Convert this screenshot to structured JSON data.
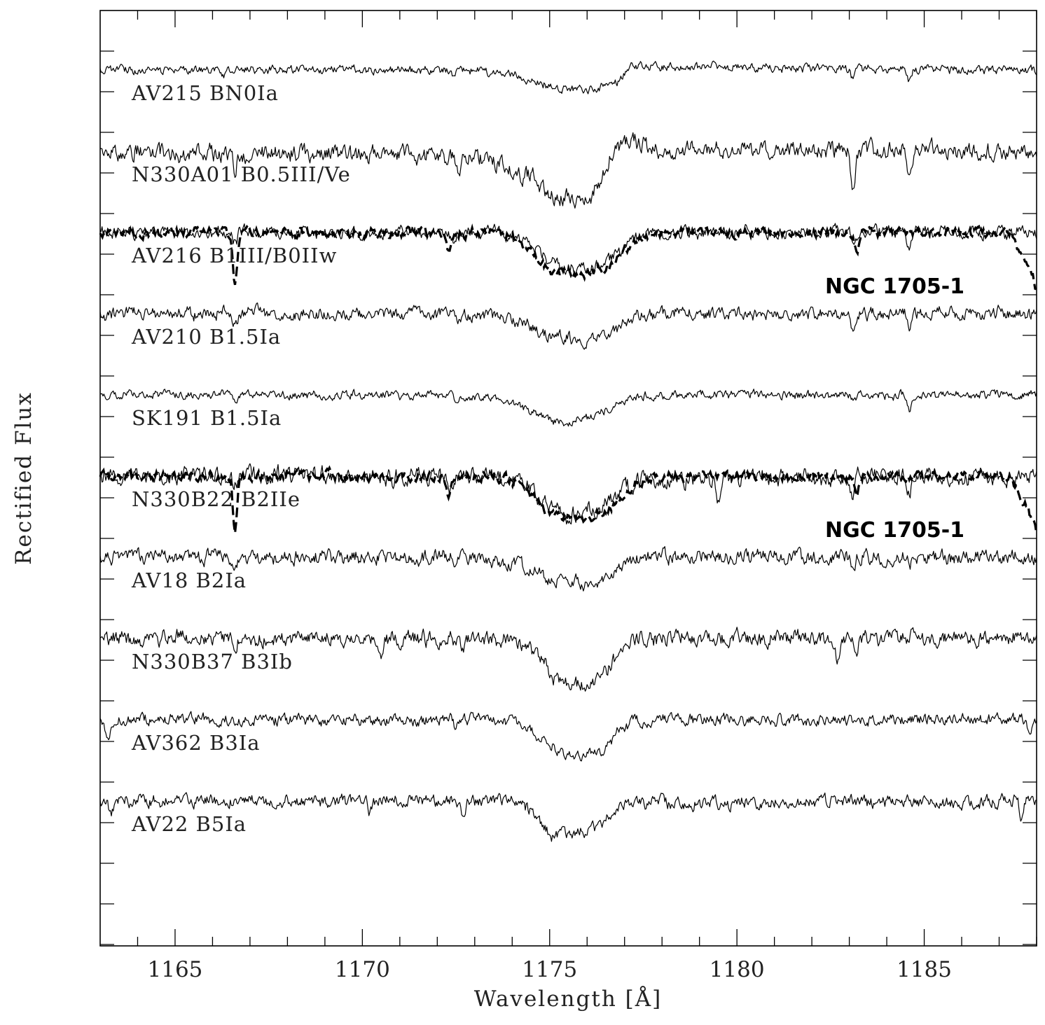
{
  "chart_data": {
    "type": "line",
    "title": "",
    "xlabel": "Wavelength [Å]",
    "ylabel": "Rectified Flux",
    "xlim": [
      1163,
      1188
    ],
    "x_ticks": [
      "1165",
      "1170",
      "1175",
      "1180",
      "1185"
    ],
    "grid": false,
    "series": [
      {
        "name": "AV215 BN0Ia",
        "offset": 0,
        "profile": [
          [
            1163,
            0
          ],
          [
            1172.5,
            0
          ],
          [
            1173.8,
            -0.05
          ],
          [
            1174.5,
            -0.2
          ],
          [
            1175.2,
            -0.33
          ],
          [
            1176.2,
            -0.35
          ],
          [
            1176.8,
            -0.25
          ],
          [
            1177.2,
            0.08
          ],
          [
            1178,
            0.05
          ],
          [
            1188,
            0
          ]
        ],
        "narrow": [
          [
            1166.3,
            -0.1
          ],
          [
            1172.4,
            -0.1
          ],
          [
            1183.1,
            -0.2
          ],
          [
            1184.6,
            -0.22
          ]
        ]
      },
      {
        "name": "N330A01 B0.5III/Ve",
        "offset": 1,
        "profile": [
          [
            1163,
            0
          ],
          [
            1170,
            -0.05
          ],
          [
            1172,
            -0.1
          ],
          [
            1173.5,
            -0.18
          ],
          [
            1174.5,
            -0.45
          ],
          [
            1175,
            -0.8
          ],
          [
            1175.5,
            -0.85
          ],
          [
            1175.9,
            -1.0
          ],
          [
            1176.3,
            -0.6
          ],
          [
            1176.6,
            -0.1
          ],
          [
            1177.2,
            0.2
          ],
          [
            1178,
            0.05
          ],
          [
            1188,
            0
          ]
        ],
        "narrow": [
          [
            1166.6,
            -0.3
          ],
          [
            1168.6,
            -0.2
          ],
          [
            1172.6,
            -0.4
          ],
          [
            1183.1,
            -0.65
          ],
          [
            1184.6,
            -0.6
          ]
        ]
      },
      {
        "name": "AV216 B1III/B0IIw",
        "offset": 2,
        "profile": [
          [
            1163,
            0
          ],
          [
            1173.5,
            0
          ],
          [
            1174.4,
            -0.15
          ],
          [
            1175,
            -0.55
          ],
          [
            1175.6,
            -0.65
          ],
          [
            1176.2,
            -0.62
          ],
          [
            1176.8,
            -0.35
          ],
          [
            1177.5,
            -0.05
          ],
          [
            1178,
            0
          ],
          [
            1188,
            0
          ]
        ],
        "narrow": [
          [
            1166.6,
            -0.2
          ],
          [
            1172.4,
            -0.18
          ],
          [
            1183.1,
            -0.22
          ],
          [
            1184.6,
            -0.2
          ]
        ]
      },
      {
        "name": "AV210 B1.5Ia",
        "offset": 3,
        "profile": [
          [
            1163,
            0
          ],
          [
            1172,
            0
          ],
          [
            1173.5,
            -0.05
          ],
          [
            1174.3,
            -0.2
          ],
          [
            1174.8,
            -0.35
          ],
          [
            1175.4,
            -0.45
          ],
          [
            1176.1,
            -0.52
          ],
          [
            1176.7,
            -0.3
          ],
          [
            1177.2,
            -0.05
          ],
          [
            1178,
            0
          ],
          [
            1188,
            0
          ]
        ],
        "narrow": [
          [
            1166.6,
            -0.2
          ],
          [
            1172.6,
            -0.15
          ],
          [
            1183.1,
            -0.3
          ],
          [
            1184.6,
            -0.25
          ]
        ]
      },
      {
        "name": "SK191 B1.5Ia",
        "offset": 4,
        "profile": [
          [
            1163,
            0
          ],
          [
            1172.5,
            0
          ],
          [
            1173.8,
            -0.08
          ],
          [
            1174.5,
            -0.3
          ],
          [
            1175.2,
            -0.5
          ],
          [
            1175.8,
            -0.45
          ],
          [
            1176.5,
            -0.3
          ],
          [
            1177,
            -0.1
          ],
          [
            1177.5,
            0
          ],
          [
            1188,
            0
          ]
        ],
        "narrow": [
          [
            1166.6,
            -0.1
          ],
          [
            1172.5,
            -0.08
          ],
          [
            1183.1,
            -0.12
          ],
          [
            1184.6,
            -0.3
          ]
        ]
      },
      {
        "name": "N330B22 B2IIe",
        "offset": 5,
        "profile": [
          [
            1163,
            0
          ],
          [
            1173.8,
            0
          ],
          [
            1174.5,
            -0.2
          ],
          [
            1175,
            -0.62
          ],
          [
            1175.6,
            -0.72
          ],
          [
            1176.2,
            -0.6
          ],
          [
            1176.8,
            -0.3
          ],
          [
            1177.5,
            -0.05
          ],
          [
            1188,
            0
          ]
        ],
        "narrow": [
          [
            1166.6,
            -0.2
          ],
          [
            1172.4,
            -0.3
          ],
          [
            1179.5,
            -0.45
          ],
          [
            1183.1,
            -0.3
          ],
          [
            1184.6,
            -0.25
          ]
        ]
      },
      {
        "name": "AV18 B2Ia",
        "offset": 6,
        "profile": [
          [
            1163,
            0
          ],
          [
            1172.5,
            0
          ],
          [
            1174,
            -0.1
          ],
          [
            1174.6,
            -0.3
          ],
          [
            1175.3,
            -0.45
          ],
          [
            1175.9,
            -0.5
          ],
          [
            1176.5,
            -0.4
          ],
          [
            1177,
            -0.1
          ],
          [
            1177.5,
            0
          ],
          [
            1188,
            0
          ]
        ],
        "narrow": [
          [
            1166.6,
            -0.2
          ],
          [
            1172.5,
            -0.1
          ],
          [
            1183.1,
            -0.1
          ],
          [
            1184.6,
            -0.12
          ]
        ]
      },
      {
        "name": "N330B37 B3Ib",
        "offset": 7,
        "profile": [
          [
            1163,
            0
          ],
          [
            1173.5,
            0
          ],
          [
            1174.3,
            -0.1
          ],
          [
            1174.8,
            -0.4
          ],
          [
            1175.2,
            -0.75
          ],
          [
            1175.8,
            -0.78
          ],
          [
            1176.3,
            -0.8
          ],
          [
            1176.6,
            -0.5
          ],
          [
            1177,
            -0.05
          ],
          [
            1178,
            0
          ],
          [
            1188,
            0
          ]
        ],
        "narrow": [
          [
            1166.6,
            -0.15
          ],
          [
            1170.5,
            -0.2
          ],
          [
            1172.7,
            -0.2
          ],
          [
            1182.7,
            -0.35
          ],
          [
            1183.2,
            -0.25
          ]
        ]
      },
      {
        "name": "AV362 B3Ia",
        "offset": 8,
        "profile": [
          [
            1163,
            0
          ],
          [
            1174,
            0
          ],
          [
            1174.8,
            -0.3
          ],
          [
            1175.3,
            -0.6
          ],
          [
            1175.9,
            -0.62
          ],
          [
            1176.5,
            -0.55
          ],
          [
            1176.8,
            -0.2
          ],
          [
            1177.2,
            -0.05
          ],
          [
            1178,
            0
          ],
          [
            1188,
            0
          ]
        ],
        "narrow": [
          [
            1163.2,
            -0.3
          ],
          [
            1172.5,
            -0.15
          ],
          [
            1187.8,
            -0.2
          ]
        ]
      },
      {
        "name": "AV22 B5Ia",
        "offset": 9,
        "profile": [
          [
            1163,
            0
          ],
          [
            1174,
            0
          ],
          [
            1174.6,
            -0.2
          ],
          [
            1175,
            -0.6
          ],
          [
            1175.6,
            -0.58
          ],
          [
            1176.2,
            -0.45
          ],
          [
            1176.7,
            -0.25
          ],
          [
            1177,
            -0.05
          ],
          [
            1188,
            0
          ]
        ],
        "narrow": [
          [
            1163.3,
            -0.2
          ],
          [
            1170.2,
            -0.25
          ],
          [
            1172.7,
            -0.2
          ],
          [
            1187.6,
            -0.3
          ]
        ]
      }
    ],
    "overlays": [
      {
        "name": "NGC 1705-1",
        "on_series": "AV216 B1III/B0IIw",
        "profile": [
          [
            1163,
            0
          ],
          [
            1173.8,
            0
          ],
          [
            1174.4,
            -0.25
          ],
          [
            1175,
            -0.7
          ],
          [
            1176,
            -0.75
          ],
          [
            1176.6,
            -0.6
          ],
          [
            1177.3,
            -0.15
          ],
          [
            1178,
            0
          ],
          [
            1187.3,
            0
          ],
          [
            1187.7,
            -0.5
          ],
          [
            1188,
            -1.0
          ]
        ],
        "narrow": [
          [
            1166.6,
            -1.0
          ],
          [
            1172.3,
            -0.3
          ],
          [
            1183.2,
            -0.4
          ]
        ]
      },
      {
        "name": "NGC 1705-1",
        "on_series": "N330B22 B2IIe",
        "profile": [
          [
            1163,
            0
          ],
          [
            1173.8,
            0
          ],
          [
            1174.4,
            -0.25
          ],
          [
            1175,
            -0.7
          ],
          [
            1176,
            -0.75
          ],
          [
            1176.6,
            -0.6
          ],
          [
            1177.3,
            -0.15
          ],
          [
            1178,
            0
          ],
          [
            1187.3,
            0
          ],
          [
            1187.7,
            -0.5
          ],
          [
            1188,
            -1.0
          ]
        ],
        "narrow": [
          [
            1166.6,
            -1.0
          ],
          [
            1172.3,
            -0.3
          ],
          [
            1183.2,
            -0.4
          ]
        ]
      }
    ]
  }
}
